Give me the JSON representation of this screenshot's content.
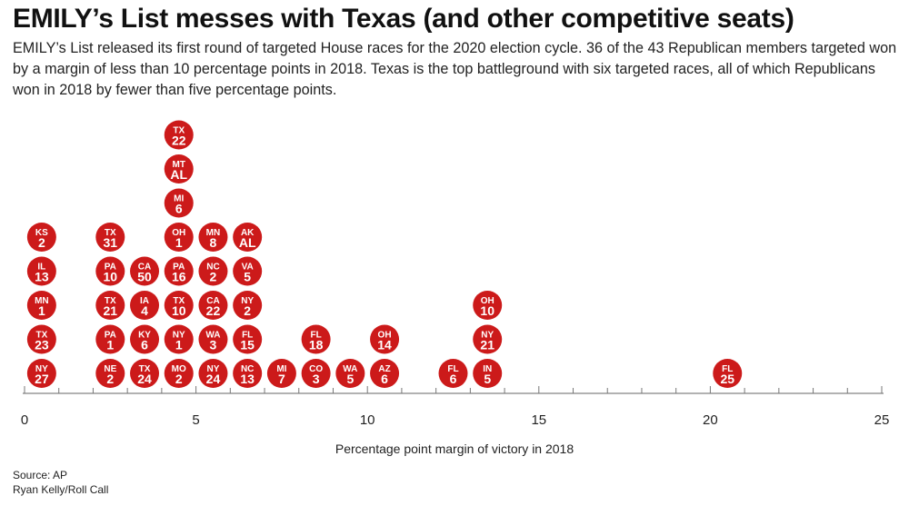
{
  "header": {
    "title": "EMILY’s List messes with Texas (and other competitive seats)",
    "subtitle": "EMILY’s List released its first round of targeted House races for the 2020 election cycle. 36 of the 43 Republican members targeted won by a margin of less than 10 percentage points in 2018. Texas is the top battleground with six targeted races, all of which Republicans won in 2018 by fewer than five percentage points."
  },
  "footer": {
    "source": "Source: AP",
    "credit": "Ryan Kelly/Roll Call"
  },
  "chart_data": {
    "type": "scatter",
    "title": "EMILY’s List messes with Texas (and other competitive seats)",
    "xlabel": "Percentage point margin of victory in 2018",
    "ylabel": "",
    "xlim": [
      0,
      25
    ],
    "x_ticks": [
      "0",
      "5",
      "10",
      "15",
      "20",
      "25"
    ],
    "grid": false,
    "marker_color": "#cc1a1a",
    "bins": [
      {
        "x": 0.5,
        "districts": [
          [
            "NY",
            "27"
          ],
          [
            "TX",
            "23"
          ],
          [
            "MN",
            "1"
          ],
          [
            "IL",
            "13"
          ],
          [
            "KS",
            "2"
          ]
        ]
      },
      {
        "x": 2.5,
        "districts": [
          [
            "NE",
            "2"
          ],
          [
            "PA",
            "1"
          ],
          [
            "TX",
            "21"
          ],
          [
            "PA",
            "10"
          ],
          [
            "TX",
            "31"
          ]
        ]
      },
      {
        "x": 3.5,
        "districts": [
          [
            "TX",
            "24"
          ],
          [
            "KY",
            "6"
          ],
          [
            "IA",
            "4"
          ],
          [
            "CA",
            "50"
          ]
        ]
      },
      {
        "x": 4.5,
        "districts": [
          [
            "MO",
            "2"
          ],
          [
            "NY",
            "1"
          ],
          [
            "TX",
            "10"
          ],
          [
            "PA",
            "16"
          ],
          [
            "OH",
            "1"
          ],
          [
            "MI",
            "6"
          ],
          [
            "MT",
            "AL"
          ],
          [
            "TX",
            "22"
          ]
        ]
      },
      {
        "x": 5.5,
        "districts": [
          [
            "NY",
            "24"
          ],
          [
            "WA",
            "3"
          ],
          [
            "CA",
            "22"
          ],
          [
            "NC",
            "2"
          ],
          [
            "MN",
            "8"
          ]
        ]
      },
      {
        "x": 6.5,
        "districts": [
          [
            "NC",
            "13"
          ],
          [
            "FL",
            "15"
          ],
          [
            "NY",
            "2"
          ],
          [
            "VA",
            "5"
          ],
          [
            "AK",
            "AL"
          ]
        ]
      },
      {
        "x": 7.5,
        "districts": [
          [
            "MI",
            "7"
          ]
        ]
      },
      {
        "x": 8.5,
        "districts": [
          [
            "CO",
            "3"
          ],
          [
            "FL",
            "18"
          ]
        ]
      },
      {
        "x": 9.5,
        "districts": [
          [
            "WA",
            "5"
          ]
        ]
      },
      {
        "x": 10.5,
        "districts": [
          [
            "AZ",
            "6"
          ],
          [
            "OH",
            "14"
          ]
        ]
      },
      {
        "x": 12.5,
        "districts": [
          [
            "FL",
            "6"
          ]
        ]
      },
      {
        "x": 13.5,
        "districts": [
          [
            "IN",
            "5"
          ],
          [
            "NY",
            "21"
          ],
          [
            "OH",
            "10"
          ]
        ]
      },
      {
        "x": 20.5,
        "districts": [
          [
            "FL",
            "25"
          ]
        ]
      }
    ]
  }
}
